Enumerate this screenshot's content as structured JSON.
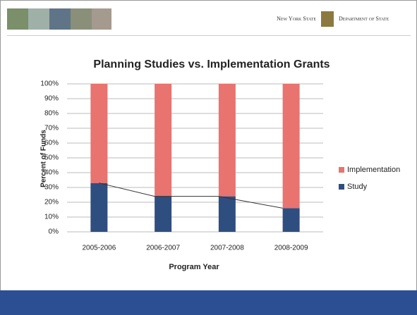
{
  "header": {
    "left_text": "New York State",
    "right_text": "Department of State"
  },
  "chart_data": {
    "type": "bar",
    "stacked": true,
    "connector": true,
    "title": "Planning Studies vs. Implementation Grants",
    "x_label": "Program Year",
    "y_label": "Percent of Funds",
    "categories": [
      "2005-2006",
      "2006-2007",
      "2007-2008",
      "2008-2009"
    ],
    "series": [
      {
        "name": "Study",
        "color": "#2f4e80",
        "values": [
          33,
          24,
          24,
          16
        ]
      },
      {
        "name": "Implementation",
        "color": "#e8736f",
        "values": [
          67,
          76,
          76,
          84
        ]
      }
    ],
    "ylim": [
      0,
      100
    ],
    "yticks": [
      {
        "value": 0,
        "label": "0%"
      },
      {
        "value": 10,
        "label": "10%"
      },
      {
        "value": 20,
        "label": "20%"
      },
      {
        "value": 30,
        "label": "30%"
      },
      {
        "value": 40,
        "label": "40%"
      },
      {
        "value": 50,
        "label": "50%"
      },
      {
        "value": 60,
        "label": "60%"
      },
      {
        "value": 70,
        "label": "70%"
      },
      {
        "value": 80,
        "label": "80%"
      },
      {
        "value": 90,
        "label": "90%"
      },
      {
        "value": 100,
        "label": "100%"
      }
    ],
    "grid": true,
    "legend": "right"
  }
}
